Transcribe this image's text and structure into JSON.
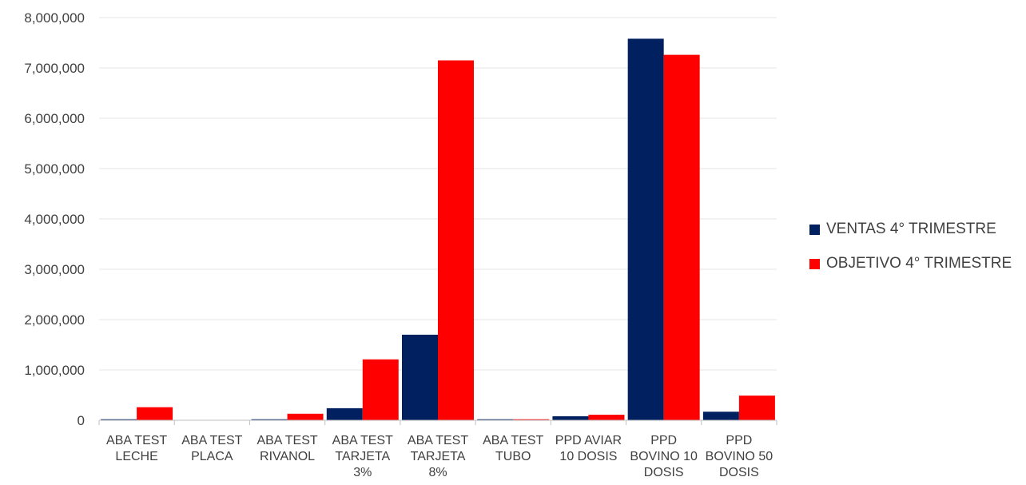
{
  "chart_data": {
    "type": "bar",
    "categories": [
      [
        "ABA TEST",
        "LECHE"
      ],
      [
        "ABA TEST",
        "PLACA"
      ],
      [
        "ABA TEST",
        "RIVANOL"
      ],
      [
        "ABA TEST",
        "TARJETA",
        "3%"
      ],
      [
        "ABA TEST",
        "TARJETA",
        "8%"
      ],
      [
        "ABA TEST",
        "TUBO"
      ],
      [
        "PPD AVIAR",
        "10 DOSIS"
      ],
      [
        "PPD",
        "BOVINO 10",
        "DOSIS"
      ],
      [
        "PPD",
        "BOVINO 50",
        "DOSIS"
      ]
    ],
    "series": [
      {
        "name": "VENTAS 4° TRIMESTRE",
        "color": "#002060",
        "values": [
          20000,
          0,
          20000,
          240000,
          1700000,
          20000,
          80000,
          7580000,
          170000
        ]
      },
      {
        "name": "OBJETIVO 4° TRIMESTRE",
        "color": "#FF0000",
        "values": [
          260000,
          0,
          130000,
          1210000,
          7150000,
          20000,
          110000,
          7260000,
          490000
        ]
      }
    ],
    "ylim": [
      0,
      8000000
    ],
    "yticks": [
      "0",
      "1,000,000",
      "2,000,000",
      "3,000,000",
      "4,000,000",
      "5,000,000",
      "6,000,000",
      "7,000,000",
      "8,000,000"
    ],
    "grid": true,
    "legend_position": "right"
  }
}
